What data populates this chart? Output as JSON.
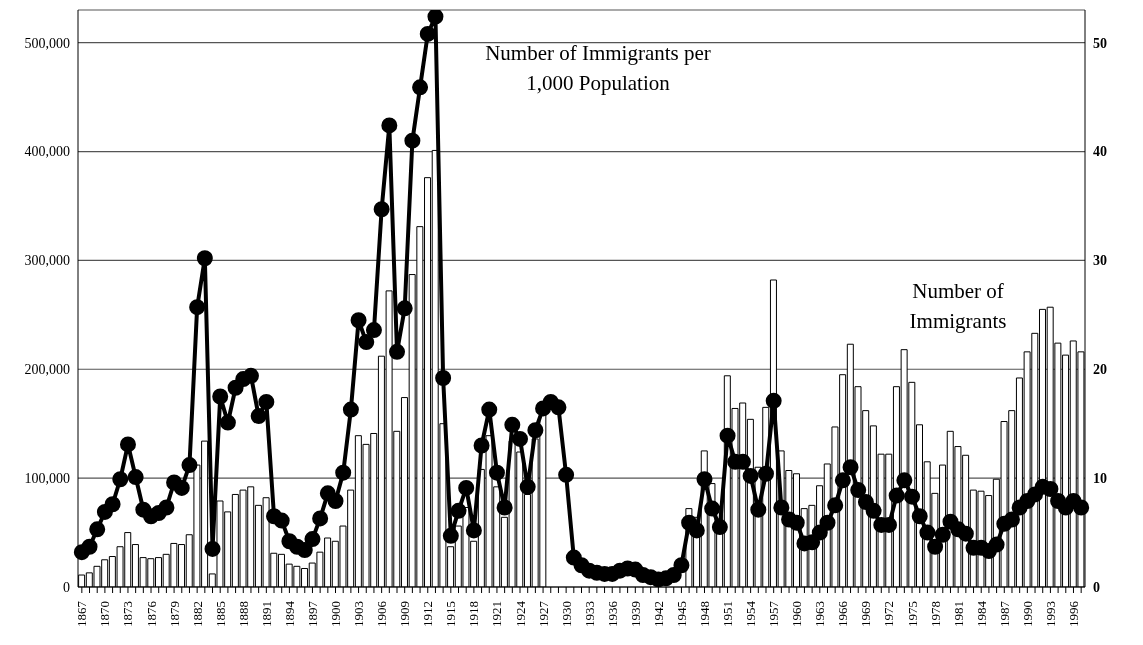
{
  "chart_data": {
    "type": "bar",
    "categories": [
      "1867",
      null,
      null,
      "1870",
      null,
      null,
      "1873",
      null,
      null,
      "1876",
      null,
      null,
      "1879",
      null,
      null,
      "1882",
      null,
      null,
      "1885",
      null,
      null,
      "1888",
      null,
      null,
      "1891",
      null,
      null,
      "1894",
      null,
      null,
      "1897",
      null,
      null,
      "1900",
      null,
      null,
      "1903",
      null,
      null,
      "1906",
      null,
      null,
      "1909",
      null,
      null,
      "1912",
      null,
      null,
      "1915",
      null,
      null,
      "1918",
      null,
      null,
      "1921",
      null,
      null,
      "1924",
      null,
      null,
      "1927",
      null,
      null,
      "1930",
      null,
      null,
      "1933",
      null,
      null,
      "1936",
      null,
      null,
      "1939",
      null,
      null,
      "1942",
      null,
      null,
      "1945",
      null,
      null,
      "1948",
      null,
      null,
      "1951",
      null,
      null,
      "1954",
      null,
      null,
      "1957",
      null,
      null,
      "1960",
      null,
      null,
      "1963",
      null,
      null,
      "1966",
      null,
      null,
      "1969",
      null,
      null,
      "1972",
      null,
      null,
      "1975",
      null,
      null,
      "1978",
      null,
      null,
      "1981",
      null,
      null,
      "1984",
      null,
      null,
      "1987",
      null,
      null,
      "1990",
      null,
      null,
      "1993",
      null,
      null,
      "1996",
      null
    ],
    "series": [
      {
        "name": "Number of Immigrants",
        "color": "#ffffff",
        "values": [
          11000,
          13000,
          19000,
          25000,
          28000,
          37000,
          50000,
          39000,
          27000,
          26000,
          27000,
          30000,
          40000,
          39000,
          48000,
          112000,
          134000,
          12000,
          79000,
          69000,
          85000,
          89000,
          92000,
          75000,
          82000,
          31000,
          30000,
          21000,
          19000,
          17000,
          22000,
          32000,
          45000,
          42000,
          56000,
          89000,
          139000,
          131000,
          141000,
          212000,
          272000,
          143000,
          174000,
          287000,
          331000,
          376000,
          401000,
          150000,
          37000,
          56000,
          73000,
          42000,
          108000,
          139000,
          92000,
          64000,
          134000,
          124000,
          85000,
          136000,
          159000,
          null,
          null,
          null,
          null,
          null,
          null,
          null,
          null,
          null,
          null,
          null,
          null,
          null,
          null,
          null,
          null,
          null,
          null,
          72000,
          64000,
          125000,
          95000,
          74000,
          194000,
          164000,
          169000,
          154000,
          110000,
          165000,
          282000,
          125000,
          107000,
          104000,
          72000,
          75000,
          93000,
          113000,
          147000,
          195000,
          223000,
          184000,
          162000,
          148000,
          122000,
          122000,
          184000,
          218000,
          188000,
          149000,
          115000,
          86000,
          112000,
          143000,
          129000,
          121000,
          89000,
          88000,
          84000,
          99000,
          152000,
          162000,
          192000,
          216000,
          233000,
          255000,
          257000,
          224000,
          213000,
          226000,
          216000
        ]
      },
      {
        "name": "Number of Immigrants per 1,000 Population",
        "type": "line",
        "axis": "y2",
        "color": "#000000",
        "values": [
          3.2,
          3.7,
          5.3,
          6.9,
          7.6,
          9.9,
          13.1,
          10.1,
          7.1,
          6.5,
          6.8,
          7.3,
          9.6,
          9.1,
          11.2,
          25.7,
          30.2,
          3.5,
          17.5,
          15.1,
          18.3,
          19.1,
          19.4,
          15.7,
          17.0,
          6.5,
          6.1,
          4.2,
          3.7,
          3.4,
          4.4,
          6.3,
          8.6,
          7.9,
          10.5,
          16.3,
          24.5,
          22.5,
          23.6,
          34.7,
          42.4,
          21.6,
          25.6,
          41.0,
          45.9,
          50.8,
          52.4,
          19.2,
          4.7,
          7.0,
          9.1,
          5.2,
          13.0,
          16.3,
          10.5,
          7.3,
          14.9,
          13.6,
          9.2,
          14.4,
          16.4,
          17.0,
          16.5,
          10.3,
          2.7,
          2.0,
          1.5,
          1.3,
          1.2,
          1.2,
          1.5,
          1.7,
          1.6,
          1.1,
          0.9,
          0.7,
          0.8,
          1.1,
          2.0,
          5.9,
          5.2,
          9.9,
          7.2,
          5.5,
          13.9,
          11.5,
          11.5,
          10.2,
          7.1,
          10.4,
          17.1,
          7.3,
          6.2,
          5.9,
          4.0,
          4.1,
          5.0,
          5.9,
          7.5,
          9.8,
          11.0,
          8.9,
          7.8,
          7.0,
          5.7,
          5.7,
          8.4,
          9.8,
          8.3,
          6.5,
          5.0,
          3.7,
          4.8,
          6.0,
          5.3,
          4.9,
          3.6,
          3.6,
          3.3,
          3.9,
          5.8,
          6.2,
          7.3,
          7.9,
          8.5,
          9.2,
          9.0,
          7.9,
          7.3,
          7.9,
          7.3
        ]
      }
    ],
    "ylim": [
      0,
      530000
    ],
    "yticks": [
      0,
      {
        "value": 100000,
        "label": "100,000"
      },
      {
        "value": 200000,
        "label": "200,000"
      },
      {
        "value": 300000,
        "label": "300,000"
      },
      {
        "value": 400000,
        "label": "400,000"
      },
      {
        "value": 500000,
        "label": "500,000"
      }
    ],
    "y2lim": [
      0,
      53
    ],
    "y2ticks": [
      0,
      10,
      20,
      30,
      40,
      50
    ],
    "grid": "y",
    "marker": "circle"
  }
}
